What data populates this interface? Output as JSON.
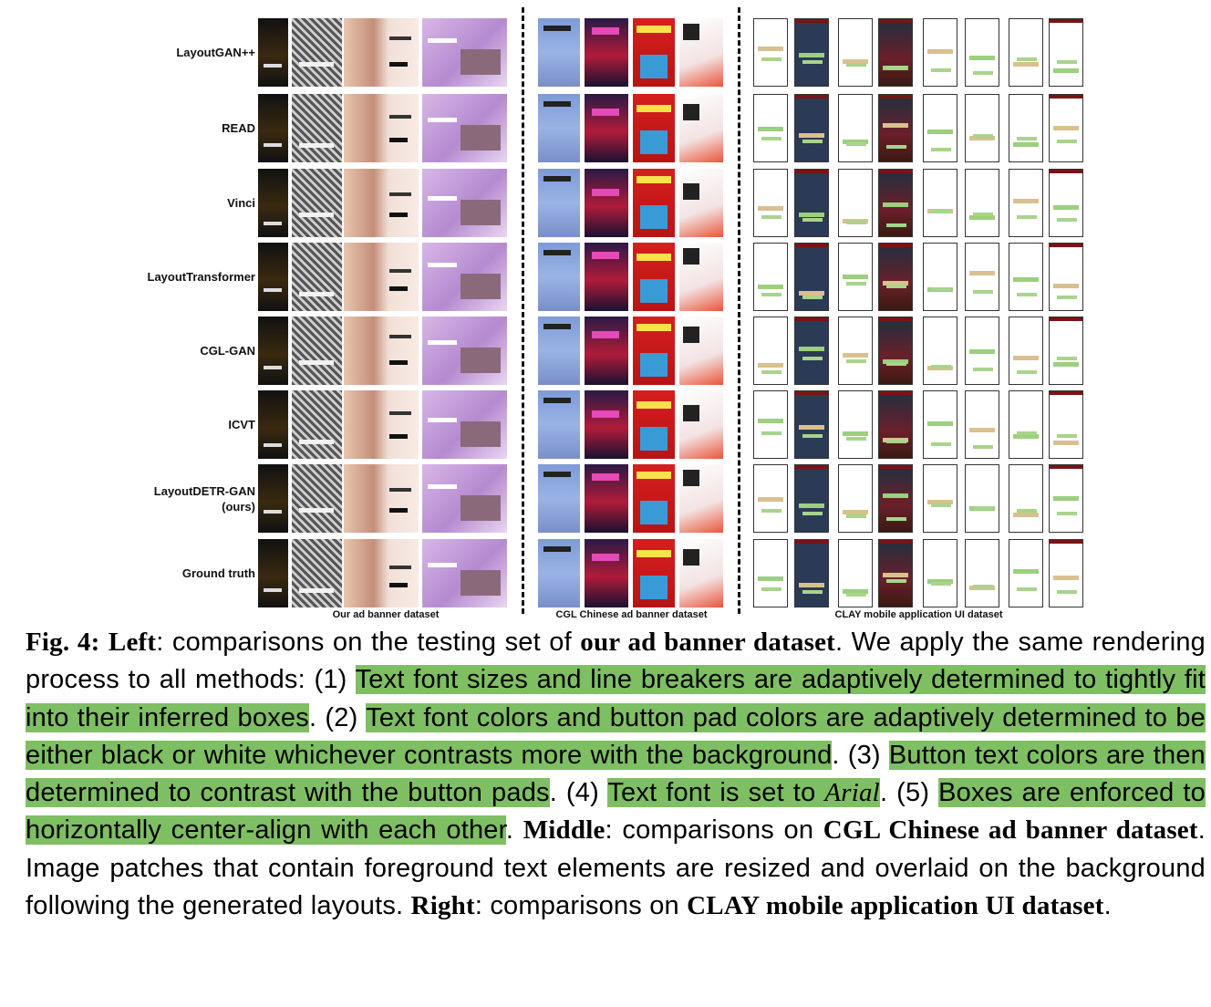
{
  "rows": [
    "LayoutGAN++",
    "READ",
    "Vinci",
    "LayoutTransformer",
    "CGL-GAN",
    "ICVT",
    "LayoutDETR-GAN (ours)",
    "Ground truth"
  ],
  "sections": {
    "left": "Our ad banner dataset",
    "middle": "CGL Chinese ad banner dataset",
    "right": "CLAY mobile application UI dataset"
  },
  "caption": {
    "fig": "Fig. 4:",
    "left_b": "Left",
    "t1": ": comparisons on the testing set of ",
    "dataset_b": "our ad banner dataset",
    "t2": ". We apply the same rendering process to all methods: (1) ",
    "h1": "Text font sizes and line breakers are adaptively determined to tightly fit into their inferred boxes",
    "t3": ". (2) ",
    "h2": "Text font colors and button pad colors are adaptively determined to be either black or white whichever contrasts more with the background",
    "t4": ". (3) ",
    "h3": "Button text colors are then determined to contrast with the button pads",
    "t5": ". (4) ",
    "h4a": "Text font is set to ",
    "h4i": "Arial",
    "t6": ". (5) ",
    "h5": "Boxes are enforced to horizontally center-align with each other",
    "t7": ". ",
    "middle_b": "Middle",
    "t8": ": comparisons on ",
    "cgl_b": "CGL Chinese ad banner dataset",
    "t9": ". Image patches that contain foreground text elements are resized and overlaid on the background following the generated layouts. ",
    "right_b": "Right",
    "t10": ": comparisons on ",
    "clay_b": "CLAY mobile application UI dataset",
    "t11": "."
  }
}
